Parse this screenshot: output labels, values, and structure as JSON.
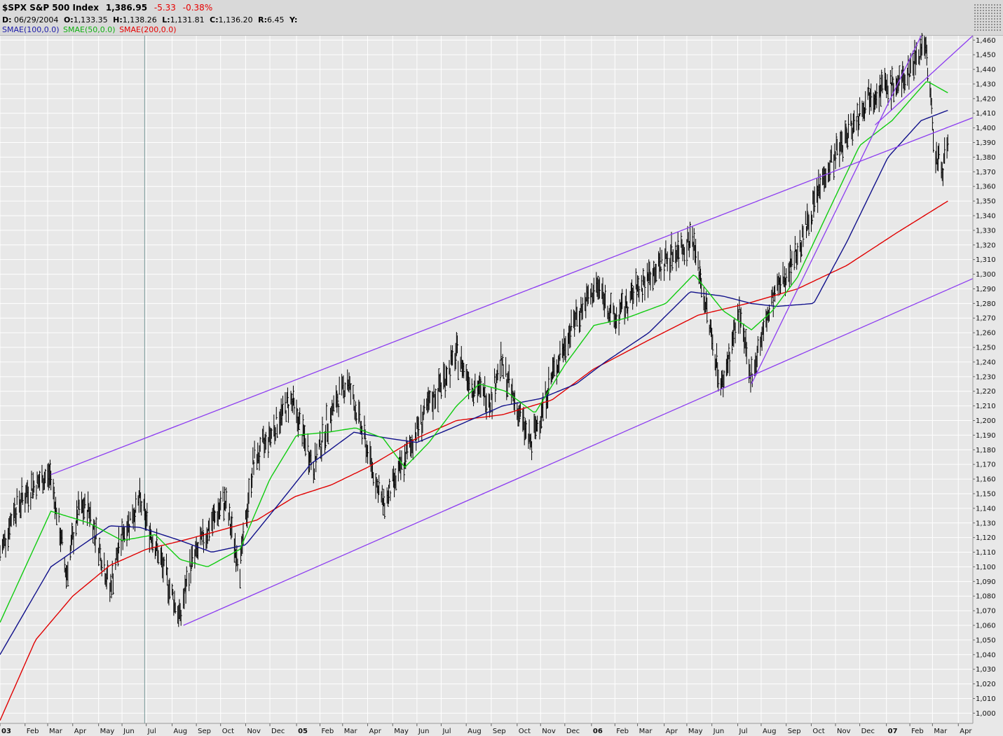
{
  "header": {
    "symbol": "$SPX S&P 500 Index",
    "last": "1,386.95",
    "change": "-5.33",
    "change_pct": "-0.38%",
    "date_label": "D:",
    "date": "06/29/2004",
    "open_label": "O:",
    "open": "1,133.35",
    "high_label": "H:",
    "high": "1,138.26",
    "low_label": "L:",
    "low": "1,131.81",
    "close_label": "C:",
    "close": "1,136.20",
    "range_label": "R:",
    "range": "6.45",
    "y_label": "Y:"
  },
  "legend": {
    "sma100": "SMAE(100,0.0)",
    "sma50": "SMAE(50,0.0)",
    "sma200": "SMAE(200,0.0)"
  },
  "colors": {
    "background": "#e8e8e8",
    "grid": "#ffffff",
    "bars": "#000000",
    "sma50": "#10cc10",
    "sma100": "#10108a",
    "sma200": "#e00000",
    "trendline": "#8c3cf0",
    "cursor": "#7a9a9a"
  },
  "chart_data": {
    "type": "line",
    "title": "$SPX S&P 500 Index",
    "xlabel": "",
    "ylabel": "",
    "ylim": [
      993,
      1463
    ],
    "xlim": [
      "2004-01-02",
      "2007-04-20"
    ],
    "y_ticks": [
      "1,000",
      "1,010",
      "1,020",
      "1,030",
      "1,040",
      "1,050",
      "1,060",
      "1,070",
      "1,080",
      "1,090",
      "1,100",
      "1,110",
      "1,120",
      "1,130",
      "1,140",
      "1,150",
      "1,160",
      "1,170",
      "1,180",
      "1,190",
      "1,200",
      "1,210",
      "1,220",
      "1,230",
      "1,240",
      "1,250",
      "1,260",
      "1,270",
      "1,280",
      "1,290",
      "1,300",
      "1,310",
      "1,320",
      "1,330",
      "1,340",
      "1,350",
      "1,360",
      "1,370",
      "1,380",
      "1,390",
      "1,400",
      "1,410",
      "1,420",
      "1,430",
      "1,440",
      "1,450",
      "1,460"
    ],
    "x_ticks": [
      {
        "label": "03",
        "date": "2004-01-02",
        "bold": true
      },
      {
        "label": "Feb",
        "date": "2004-02-02"
      },
      {
        "label": "Mar",
        "date": "2004-03-01"
      },
      {
        "label": "Apr",
        "date": "2004-04-01"
      },
      {
        "label": "May",
        "date": "2004-05-03"
      },
      {
        "label": "Jun",
        "date": "2004-06-01"
      },
      {
        "label": "Jul",
        "date": "2004-07-01"
      },
      {
        "label": "Aug",
        "date": "2004-08-02"
      },
      {
        "label": "Sep",
        "date": "2004-09-01"
      },
      {
        "label": "Oct",
        "date": "2004-10-01"
      },
      {
        "label": "Nov",
        "date": "2004-11-01"
      },
      {
        "label": "Dec",
        "date": "2004-12-01"
      },
      {
        "label": "05",
        "date": "2005-01-03",
        "bold": true
      },
      {
        "label": "Feb",
        "date": "2005-02-01"
      },
      {
        "label": "Mar",
        "date": "2005-03-01"
      },
      {
        "label": "Apr",
        "date": "2005-04-01"
      },
      {
        "label": "May",
        "date": "2005-05-02"
      },
      {
        "label": "Jun",
        "date": "2005-06-01"
      },
      {
        "label": "Jul",
        "date": "2005-07-01"
      },
      {
        "label": "Aug",
        "date": "2005-08-01"
      },
      {
        "label": "Sep",
        "date": "2005-09-01"
      },
      {
        "label": "Oct",
        "date": "2005-10-03"
      },
      {
        "label": "Nov",
        "date": "2005-11-01"
      },
      {
        "label": "Dec",
        "date": "2005-12-01"
      },
      {
        "label": "06",
        "date": "2006-01-03",
        "bold": true
      },
      {
        "label": "Feb",
        "date": "2006-02-01"
      },
      {
        "label": "Mar",
        "date": "2006-03-01"
      },
      {
        "label": "Apr",
        "date": "2006-04-03"
      },
      {
        "label": "May",
        "date": "2006-05-01"
      },
      {
        "label": "Jun",
        "date": "2006-06-01"
      },
      {
        "label": "Jul",
        "date": "2006-07-03"
      },
      {
        "label": "Aug",
        "date": "2006-08-01"
      },
      {
        "label": "Sep",
        "date": "2006-09-01"
      },
      {
        "label": "Oct",
        "date": "2006-10-02"
      },
      {
        "label": "Nov",
        "date": "2006-11-01"
      },
      {
        "label": "Dec",
        "date": "2006-12-01"
      },
      {
        "label": "07",
        "date": "2007-01-03",
        "bold": true
      },
      {
        "label": "Feb",
        "date": "2007-02-01"
      },
      {
        "label": "Mar",
        "date": "2007-03-01"
      },
      {
        "label": "Apr",
        "date": "2007-04-02"
      }
    ],
    "cursor_date": "2004-06-29",
    "series": [
      {
        "name": "$SPX",
        "kind": "price",
        "x": [
          "2004-01-02",
          "2004-01-20",
          "2004-02-11",
          "2004-03-05",
          "2004-03-24",
          "2004-04-08",
          "2004-04-21",
          "2004-05-17",
          "2004-06-01",
          "2004-06-23",
          "2004-07-12",
          "2004-08-12",
          "2004-08-24",
          "2004-09-15",
          "2004-10-06",
          "2004-10-25",
          "2004-11-10",
          "2004-12-01",
          "2004-12-27",
          "2005-01-24",
          "2005-02-11",
          "2005-03-07",
          "2005-04-20",
          "2005-05-11",
          "2005-06-02",
          "2005-07-20",
          "2005-08-10",
          "2005-09-01",
          "2005-09-12",
          "2005-10-20",
          "2005-11-15",
          "2005-12-14",
          "2006-01-11",
          "2006-02-01",
          "2006-03-01",
          "2006-04-05",
          "2006-05-08",
          "2006-06-13",
          "2006-07-05",
          "2006-07-18",
          "2006-08-15",
          "2006-09-18",
          "2006-10-18",
          "2006-11-20",
          "2006-12-15",
          "2007-01-22",
          "2007-02-20",
          "2007-03-05",
          "2007-03-12",
          "2007-03-20"
        ],
        "values": [
          1108,
          1140,
          1155,
          1163,
          1095,
          1138,
          1140,
          1085,
          1122,
          1145,
          1115,
          1065,
          1100,
          1125,
          1145,
          1100,
          1170,
          1190,
          1215,
          1168,
          1200,
          1228,
          1142,
          1165,
          1195,
          1245,
          1223,
          1215,
          1240,
          1183,
          1230,
          1270,
          1292,
          1268,
          1290,
          1310,
          1325,
          1222,
          1275,
          1228,
          1282,
          1320,
          1368,
          1400,
          1425,
          1430,
          1460,
          1380,
          1372,
          1388
        ]
      },
      {
        "name": "SMAE(50,0.0)",
        "kind": "sma50",
        "x": [
          "2004-01-02",
          "2004-03-05",
          "2004-04-21",
          "2004-06-01",
          "2004-07-12",
          "2004-08-12",
          "2004-09-15",
          "2004-10-25",
          "2004-12-01",
          "2005-01-03",
          "2005-02-11",
          "2005-03-17",
          "2005-04-20",
          "2005-05-17",
          "2005-06-16",
          "2005-07-20",
          "2005-08-17",
          "2005-09-19",
          "2005-10-25",
          "2005-12-01",
          "2006-01-06",
          "2006-02-15",
          "2006-04-05",
          "2006-05-10",
          "2006-06-15",
          "2006-07-20",
          "2006-08-15",
          "2006-09-15",
          "2006-10-25",
          "2006-12-01",
          "2007-01-10",
          "2007-02-22",
          "2007-03-20"
        ],
        "values": [
          1062,
          1138,
          1130,
          1118,
          1122,
          1105,
          1100,
          1112,
          1160,
          1190,
          1192,
          1195,
          1188,
          1168,
          1185,
          1210,
          1225,
          1220,
          1205,
          1238,
          1265,
          1270,
          1280,
          1300,
          1275,
          1262,
          1275,
          1298,
          1345,
          1388,
          1405,
          1432,
          1424
        ]
      },
      {
        "name": "SMAE(100,0.0)",
        "kind": "sma100",
        "x": [
          "2004-01-02",
          "2004-03-05",
          "2004-05-17",
          "2004-06-23",
          "2004-08-12",
          "2004-09-20",
          "2004-11-01",
          "2004-12-15",
          "2005-01-20",
          "2005-03-15",
          "2005-04-25",
          "2005-06-01",
          "2005-07-15",
          "2005-09-15",
          "2005-11-01",
          "2005-12-15",
          "2006-01-20",
          "2006-03-15",
          "2006-05-05",
          "2006-06-15",
          "2006-07-20",
          "2006-08-20",
          "2006-10-05",
          "2006-11-15",
          "2007-01-05",
          "2007-02-15",
          "2007-03-20"
        ],
        "values": [
          1040,
          1100,
          1128,
          1127,
          1118,
          1110,
          1115,
          1145,
          1170,
          1192,
          1188,
          1185,
          1195,
          1210,
          1215,
          1225,
          1240,
          1260,
          1288,
          1285,
          1280,
          1278,
          1280,
          1322,
          1380,
          1405,
          1412
        ]
      },
      {
        "name": "SMAE(200,0.0)",
        "kind": "sma200",
        "x": [
          "2004-01-02",
          "2004-02-15",
          "2004-04-01",
          "2004-05-17",
          "2004-07-01",
          "2004-08-15",
          "2004-10-01",
          "2004-11-15",
          "2005-01-01",
          "2005-02-15",
          "2005-04-01",
          "2005-06-01",
          "2005-07-20",
          "2005-09-15",
          "2005-11-15",
          "2006-01-05",
          "2006-03-15",
          "2006-05-15",
          "2006-07-15",
          "2006-09-15",
          "2006-11-15",
          "2007-01-15",
          "2007-03-20"
        ],
        "values": [
          995,
          1050,
          1080,
          1101,
          1112,
          1118,
          1125,
          1132,
          1148,
          1156,
          1168,
          1188,
          1200,
          1204,
          1214,
          1235,
          1255,
          1272,
          1280,
          1290,
          1306,
          1328,
          1350
        ]
      }
    ],
    "trendlines": [
      {
        "x": [
          "2004-03-05",
          "2007-04-20"
        ],
        "values": [
          1163,
          1407
        ]
      },
      {
        "x": [
          "2004-08-16",
          "2007-04-20"
        ],
        "values": [
          1060,
          1297
        ]
      },
      {
        "x": [
          "2006-07-20",
          "2007-02-15"
        ],
        "values": [
          1225,
          1463
        ]
      },
      {
        "x": [
          "2006-12-20",
          "2007-04-20"
        ],
        "values": [
          1402,
          1463
        ]
      }
    ]
  }
}
